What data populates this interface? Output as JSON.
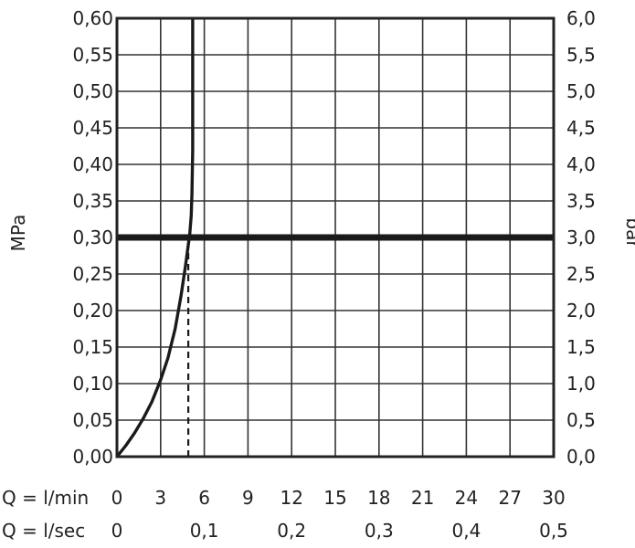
{
  "chart_data": {
    "type": "line",
    "ylabel_left": "MPa",
    "ylabel_right": "bar",
    "ylim_left": [
      0,
      0.6
    ],
    "ylim_right": [
      0,
      6.0
    ],
    "xlim": [
      0,
      30
    ],
    "grid": true,
    "left_ticks": [
      "0,00",
      "0,05",
      "0,10",
      "0,15",
      "0,20",
      "0,25",
      "0,30",
      "0,35",
      "0,40",
      "0,45",
      "0,50",
      "0,55",
      "0,60"
    ],
    "right_ticks": [
      "0,0",
      "0,5",
      "1,0",
      "1,5",
      "2,0",
      "2,5",
      "3,0",
      "3,5",
      "4,0",
      "4,5",
      "5,0",
      "5,5",
      "6,0"
    ],
    "x_row1_label": "Q = l/min",
    "x_row1_ticks": [
      "0",
      "3",
      "6",
      "9",
      "12",
      "15",
      "18",
      "21",
      "24",
      "27",
      "30"
    ],
    "x_row2_label": "Q = l/sec",
    "x_row2_ticks": [
      {
        "label": "0",
        "x": 0
      },
      {
        "label": "0,1",
        "x": 6
      },
      {
        "label": "0,2",
        "x": 12
      },
      {
        "label": "0,3",
        "x": 18
      },
      {
        "label": "0,4",
        "x": 24
      },
      {
        "label": "0,5",
        "x": 30
      }
    ],
    "series": [
      {
        "kind": "curve",
        "x": [
          0,
          0.6,
          1.2,
          1.8,
          2.4,
          3.0,
          3.5,
          4.0,
          4.4,
          4.7,
          4.9,
          5.0,
          5.1,
          5.15,
          5.2,
          5.2,
          5.2
        ],
        "y": [
          0,
          0.015,
          0.032,
          0.052,
          0.075,
          0.105,
          0.135,
          0.175,
          0.22,
          0.26,
          0.29,
          0.305,
          0.33,
          0.36,
          0.42,
          0.5,
          0.6
        ]
      },
      {
        "kind": "reference",
        "x": [
          0,
          30
        ],
        "y": [
          0.3,
          0.3
        ]
      },
      {
        "kind": "dashed",
        "x": [
          4.9,
          4.9
        ],
        "y": [
          0,
          0.3
        ]
      }
    ]
  }
}
